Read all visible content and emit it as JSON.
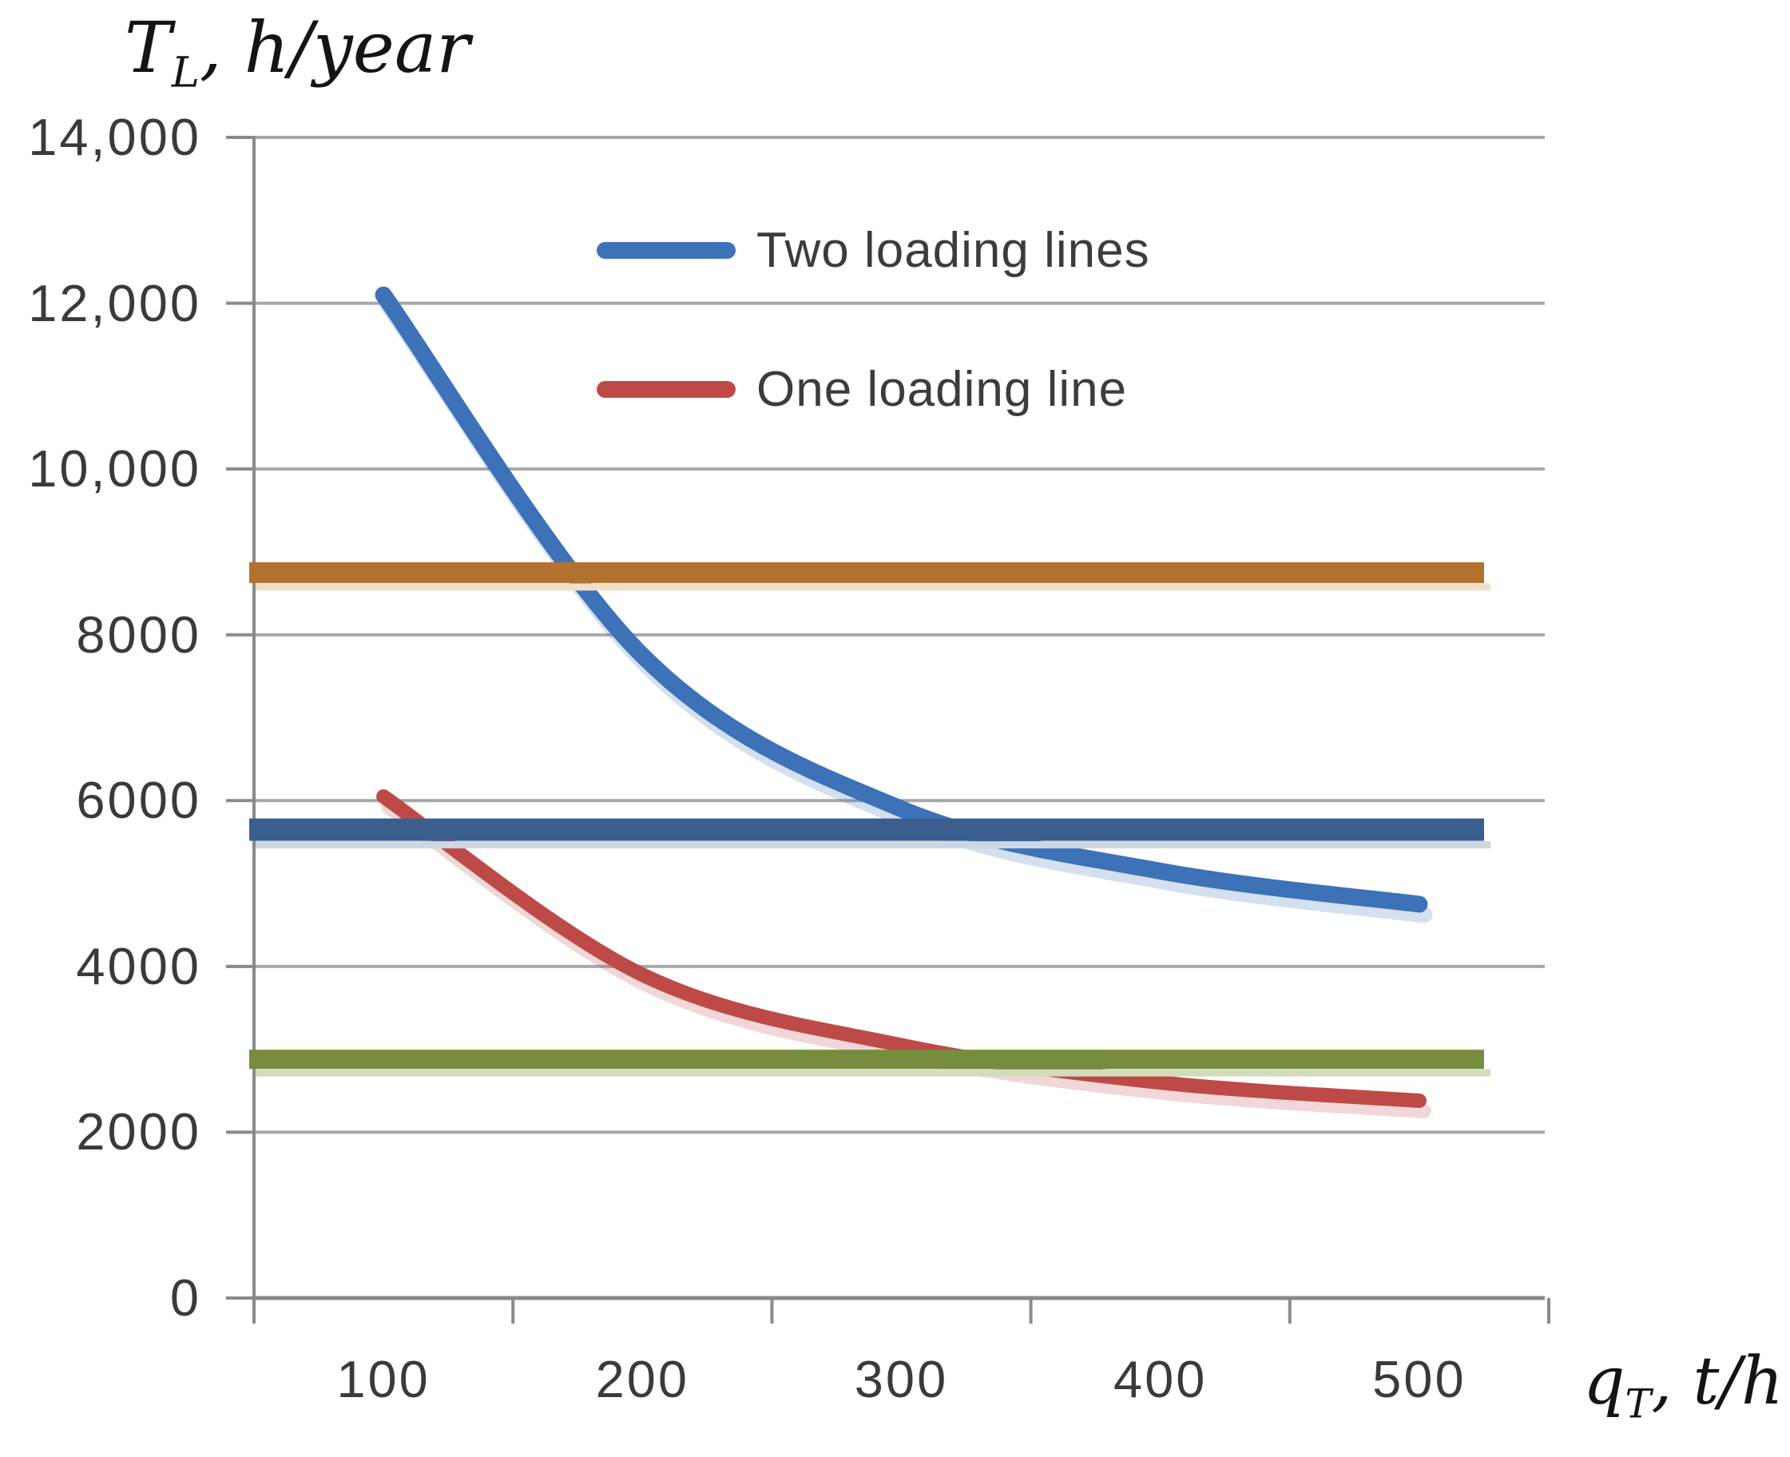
{
  "y_axis": {
    "title": {
      "main": "T",
      "sub": "L",
      "rest": ", h/year"
    },
    "ticks": [
      "14,000",
      "12,000",
      "10,000",
      "8000",
      "6000",
      "4000",
      "2000",
      "0"
    ],
    "tick_values": [
      14000,
      12000,
      10000,
      8000,
      6000,
      4000,
      2000,
      0
    ]
  },
  "x_axis": {
    "title": {
      "main": "q",
      "sub": "T",
      "rest": ", t/h"
    },
    "ticks": [
      "100",
      "200",
      "300",
      "400",
      "500"
    ],
    "tick_values": [
      100,
      200,
      300,
      400,
      500
    ]
  },
  "legend": [
    {
      "label": "Two loading lines",
      "color": "#3D72B8"
    },
    {
      "label": "One loading line",
      "color": "#BE4A47"
    }
  ],
  "colors": {
    "gridline": "#A8A8A8",
    "axis": "#8A8A8A",
    "tick_text": "#3A3A3A",
    "title_text": "#141414",
    "background": "#FFFFFF"
  },
  "chart_data": {
    "type": "line",
    "x_type": "category",
    "x": [
      100,
      200,
      300,
      400,
      500
    ],
    "xlabel": "qT, t/h",
    "ylabel": "TL, h/year",
    "ylim": [
      0,
      14000
    ],
    "ytick_step": 2000,
    "grid": true,
    "legend_position": "inside-top-center",
    "series": [
      {
        "name": "Two loading lines",
        "style": "smooth-line",
        "color": "#3D72B8",
        "values": [
          12100,
          7750,
          5900,
          5150,
          4750
        ]
      },
      {
        "name": "One loading line",
        "style": "smooth-line",
        "color": "#BE4A47",
        "values": [
          6050,
          3900,
          3050,
          2600,
          2380
        ]
      },
      {
        "name": "orange-constant-line",
        "style": "horizontal-line",
        "color": "#B4722F",
        "value": 8750
      },
      {
        "name": "navy-constant-line",
        "style": "horizontal-line",
        "color": "#3A5F8E",
        "value": 5650
      },
      {
        "name": "green-constant-line",
        "style": "horizontal-line",
        "color": "#768C3F",
        "value": 2880
      }
    ]
  }
}
